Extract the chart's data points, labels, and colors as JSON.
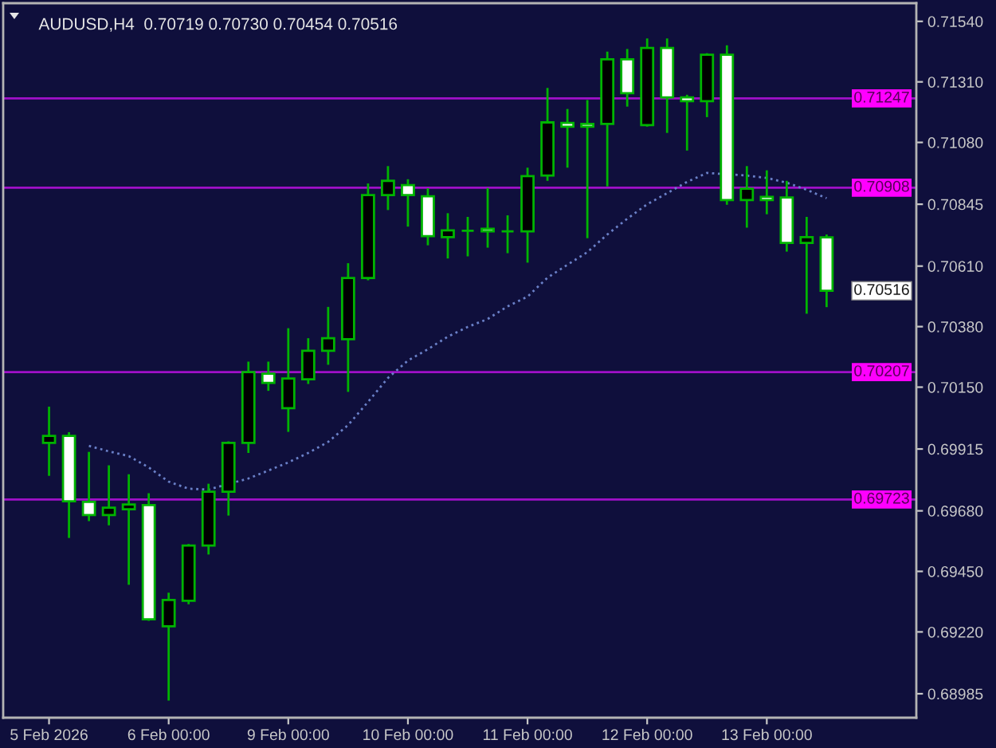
{
  "chart_data": {
    "type": "candlestick",
    "title": "AUDUSD,H4  0.70719 0.70730 0.70454 0.70516",
    "categories": [
      "5 Feb 2026",
      null,
      null,
      null,
      null,
      null,
      "6 Feb 00:00",
      null,
      null,
      null,
      null,
      null,
      "9 Feb 00:00",
      null,
      null,
      null,
      null,
      null,
      "10 Feb 00:00",
      null,
      null,
      null,
      null,
      null,
      "11 Feb 00:00",
      null,
      null,
      null,
      null,
      null,
      "12 Feb 00:00",
      null,
      null,
      null,
      null,
      null,
      "13 Feb 00:00",
      null,
      null,
      null
    ],
    "ohlc": [
      [
        0.69938,
        0.70076,
        0.69813,
        0.69965
      ],
      [
        0.69965,
        0.69979,
        0.69577,
        0.69716
      ],
      [
        0.69714,
        0.69904,
        0.69641,
        0.69664
      ],
      [
        0.69664,
        0.69853,
        0.69625,
        0.69692
      ],
      [
        0.69686,
        0.69819,
        0.69399,
        0.69704
      ],
      [
        0.69702,
        0.69747,
        0.69262,
        0.69268
      ],
      [
        0.69241,
        0.69369,
        0.68959,
        0.69341
      ],
      [
        0.69338,
        0.69554,
        0.69325,
        0.69548
      ],
      [
        0.69548,
        0.69783,
        0.69514,
        0.69753
      ],
      [
        0.69753,
        0.69944,
        0.69662,
        0.69938
      ],
      [
        0.69938,
        0.70247,
        0.699,
        0.70207
      ],
      [
        0.70201,
        0.70247,
        0.70136,
        0.70166
      ],
      [
        0.7007,
        0.70374,
        0.6998,
        0.70183
      ],
      [
        0.7018,
        0.70336,
        0.70162,
        0.70288
      ],
      [
        0.70288,
        0.70455,
        0.70235,
        0.70336
      ],
      [
        0.70332,
        0.70621,
        0.70132,
        0.70565
      ],
      [
        0.70565,
        0.70924,
        0.70556,
        0.7088
      ],
      [
        0.7088,
        0.7099,
        0.70823,
        0.70934
      ],
      [
        0.70918,
        0.7094,
        0.7076,
        0.7088
      ],
      [
        0.70875,
        0.70906,
        0.70689,
        0.70724
      ],
      [
        0.7072,
        0.70811,
        0.70639,
        0.70746
      ],
      [
        0.70744,
        0.70797,
        0.70647,
        0.70744
      ],
      [
        0.70752,
        0.70907,
        0.7068,
        0.70742
      ],
      [
        0.70742,
        0.70803,
        0.70659,
        0.70742
      ],
      [
        0.70742,
        0.70984,
        0.70623,
        0.70952
      ],
      [
        0.70954,
        0.71287,
        0.70934,
        0.71156
      ],
      [
        0.71154,
        0.71207,
        0.70984,
        0.7114
      ],
      [
        0.7115,
        0.71241,
        0.70716,
        0.7114
      ],
      [
        0.7115,
        0.71425,
        0.70913,
        0.71396
      ],
      [
        0.71396,
        0.71435,
        0.71216,
        0.71267
      ],
      [
        0.71146,
        0.71475,
        0.7114,
        0.71439
      ],
      [
        0.71439,
        0.71475,
        0.71116,
        0.71251
      ],
      [
        0.71251,
        0.71261,
        0.71049,
        0.71237
      ],
      [
        0.71237,
        0.71419,
        0.71176,
        0.71413
      ],
      [
        0.71413,
        0.71449,
        0.70843,
        0.70861
      ],
      [
        0.70861,
        0.7099,
        0.70756,
        0.70904
      ],
      [
        0.70873,
        0.70974,
        0.70807,
        0.70861
      ],
      [
        0.70871,
        0.70934,
        0.70665,
        0.70698
      ],
      [
        0.70698,
        0.70797,
        0.70429,
        0.7072
      ],
      [
        0.70719,
        0.7073,
        0.70454,
        0.70516
      ]
    ],
    "color": "#00b400",
    "colors": [
      "#000000",
      "#ffffff",
      "#ffffff",
      "#000000",
      "#000000",
      "#ffffff",
      "#000000",
      "#000000",
      "#000000",
      "#000000",
      "#000000",
      "#ffffff",
      "#000000",
      "#000000",
      "#000000",
      "#000000",
      "#000000",
      "#000000",
      "#ffffff",
      "#ffffff",
      "#000000",
      "#00b400",
      "#ffffff",
      "#00b400",
      "#000000",
      "#000000",
      "#ffffff",
      "#ffffff",
      "#000000",
      "#ffffff",
      "#000000",
      "#ffffff",
      "#ffffff",
      "#000000",
      "#ffffff",
      "#000000",
      "#ffffff",
      "#ffffff",
      "#000000",
      "#ffffff"
    ],
    "series": [
      {
        "type": "line",
        "color": "#6a80c8",
        "line_style": "dotted",
        "values": [
          null,
          null,
          0.69927,
          0.69906,
          0.69888,
          0.69845,
          0.69791,
          0.69764,
          0.69761,
          null,
          0.69803,
          0.69833,
          0.69864,
          0.699,
          0.69942,
          0.70006,
          0.70094,
          0.70185,
          0.70251,
          0.70294,
          0.70342,
          0.70379,
          0.70409,
          0.70457,
          0.70494,
          0.70566,
          0.70615,
          0.70663,
          0.7073,
          0.7079,
          0.70845,
          0.70887,
          0.7093,
          0.70964,
          null,
          0.70954,
          0.70945,
          0.70927,
          0.709,
          0.70868
        ]
      }
    ],
    "ylim": [
      0.68894,
      0.71609
    ],
    "yticks": [
      {
        "value": 0.68985,
        "label": "0.68985"
      },
      {
        "value": 0.6922,
        "label": "0.69220"
      },
      {
        "value": 0.6945,
        "label": "0.69450"
      },
      {
        "value": 0.6968,
        "label": "0.69680"
      },
      {
        "value": 0.69915,
        "label": "0.69915"
      },
      {
        "value": 0.7015,
        "label": "0.70150"
      },
      {
        "value": 0.7038,
        "label": "0.70380"
      },
      {
        "value": 0.7061,
        "label": "0.70610"
      },
      {
        "value": 0.70845,
        "label": "0.70845"
      },
      {
        "value": 0.7108,
        "label": "0.71080"
      },
      {
        "value": 0.7131,
        "label": "0.71310"
      },
      {
        "value": 0.7154,
        "label": "0.71540"
      }
    ],
    "ref_lines": [
      {
        "axis": "y",
        "value": 0.71247,
        "label": "0.71247",
        "color": "#a010c8"
      },
      {
        "axis": "y",
        "value": 0.70908,
        "label": "0.70908",
        "color": "#a010c8"
      },
      {
        "axis": "y",
        "value": 0.70207,
        "label": "0.70207",
        "color": "#a010c8"
      },
      {
        "axis": "y",
        "value": 0.69723,
        "label": "0.69723",
        "color": "#a010c8"
      }
    ],
    "annotations": [
      "0.70516"
    ]
  }
}
